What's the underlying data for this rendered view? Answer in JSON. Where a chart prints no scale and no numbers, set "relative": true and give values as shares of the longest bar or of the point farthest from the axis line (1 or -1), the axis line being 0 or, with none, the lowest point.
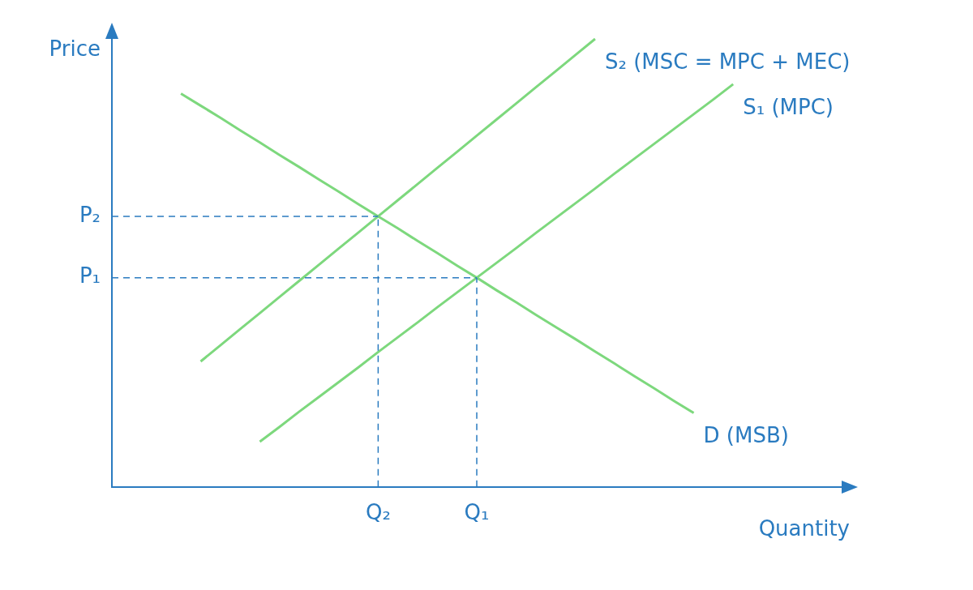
{
  "chart_data": {
    "type": "line",
    "relative": true,
    "xlabel": "Quantity",
    "ylabel": "Price",
    "legend": false,
    "grid": false,
    "marker": "none",
    "line_style": "solid",
    "categories": [
      null,
      null,
      null,
      null,
      null,
      null,
      null,
      null,
      null,
      null,
      null,
      null,
      null,
      "Q₂",
      null,
      null,
      null,
      null,
      "Q₁",
      null,
      null,
      null,
      null,
      null,
      null,
      null,
      null,
      null,
      null,
      null,
      null,
      null,
      null,
      null,
      null,
      null,
      null
    ],
    "series": [
      {
        "name": "S₂ (MSC = MPC + MEC)",
        "color": "#7dd87d",
        "values": [
          null,
          null,
          null,
          null,
          0.28,
          0.316,
          0.352,
          0.388,
          0.424,
          0.46,
          0.496,
          0.532,
          0.568,
          0.604,
          0.64,
          0.676,
          0.712,
          0.748,
          0.784,
          0.82,
          0.856,
          0.892,
          0.928,
          0.964,
          1.0,
          null,
          null,
          null,
          null,
          null,
          null,
          null,
          null,
          null,
          null,
          null,
          null
        ]
      },
      {
        "name": "S₁ (MPC)",
        "color": "#7dd87d",
        "values": [
          null,
          null,
          null,
          null,
          null,
          null,
          null,
          0.101,
          0.134,
          0.168,
          0.201,
          0.234,
          0.267,
          0.301,
          0.334,
          0.367,
          0.401,
          0.434,
          0.467,
          0.5,
          0.533,
          0.567,
          0.6,
          0.633,
          0.666,
          0.7,
          0.733,
          0.766,
          0.799,
          0.832,
          0.865,
          0.899,
          null,
          null,
          null,
          null,
          null
        ]
      },
      {
        "name": "D (MSB)",
        "color": "#7dd87d",
        "values": [
          null,
          null,
          null,
          0.878,
          0.851,
          0.824,
          0.796,
          0.769,
          0.741,
          0.714,
          0.686,
          0.659,
          0.631,
          0.604,
          0.577,
          0.549,
          0.522,
          0.494,
          0.467,
          0.439,
          0.412,
          0.384,
          0.357,
          0.33,
          0.302,
          0.275,
          0.247,
          0.22,
          0.192,
          0.165,
          null,
          null,
          null,
          null,
          null,
          null,
          null
        ]
      }
    ],
    "ref_lines": [
      {
        "axis": "y",
        "value": 0.604,
        "label": "P₂",
        "color": "#2a7bc0",
        "line_style": "dashed"
      },
      {
        "axis": "x",
        "value": "Q₂",
        "color": "#2a7bc0",
        "line_style": "dashed"
      },
      {
        "axis": "y",
        "value": 0.467,
        "label": "P₁",
        "color": "#2a7bc0",
        "line_style": "dashed"
      },
      {
        "axis": "x",
        "value": "Q₁",
        "color": "#2a7bc0",
        "line_style": "dashed"
      }
    ]
  }
}
